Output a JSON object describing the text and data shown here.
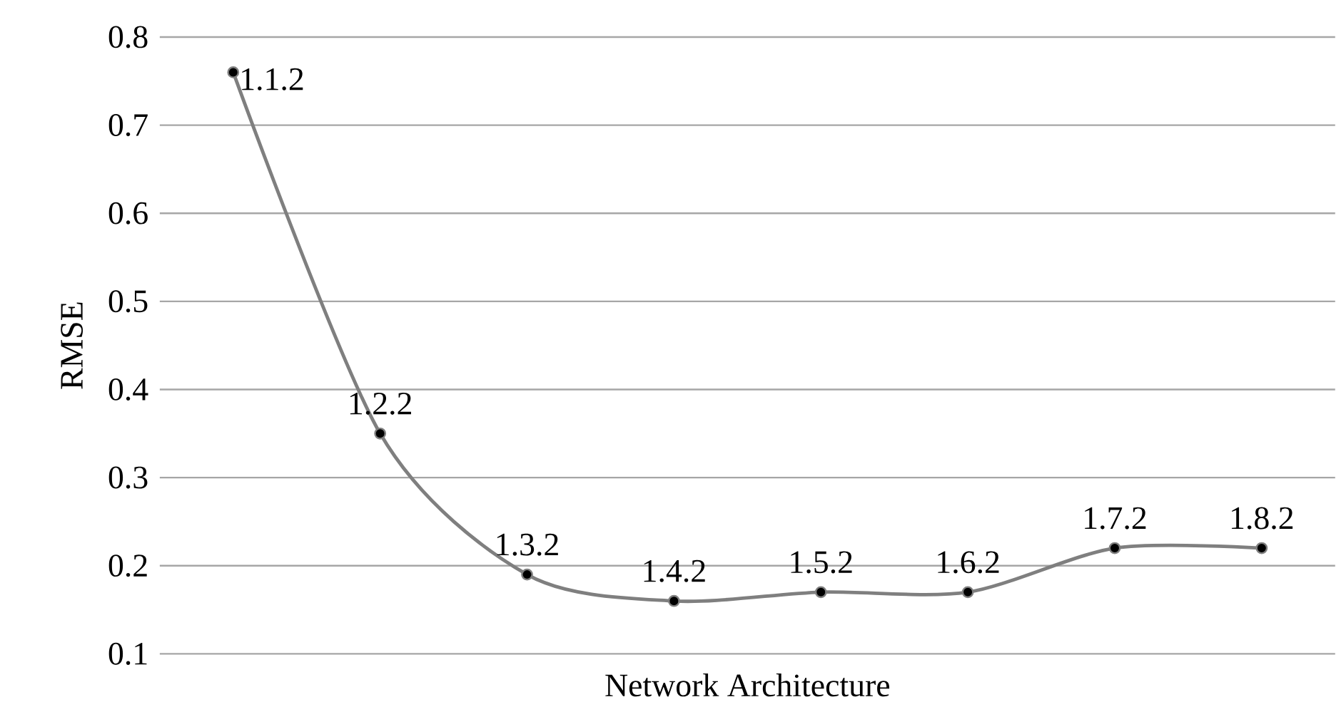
{
  "chart_data": {
    "type": "line",
    "xlabel": "Network Architecture",
    "ylabel": "RMSE",
    "categories": [
      "1.1.2",
      "1.2.2",
      "1.3.2",
      "1.4.2",
      "1.5.2",
      "1.6.2",
      "1.7.2",
      "1.8.2"
    ],
    "series": [
      {
        "color": "#7f7f7f",
        "values": [
          0.76,
          0.35,
          0.19,
          0.16,
          0.17,
          0.17,
          0.22,
          0.22
        ]
      }
    ],
    "ylim": [
      0.1,
      0.8
    ],
    "yticks": [
      0.1,
      0.2,
      0.3,
      0.4,
      0.5,
      0.6,
      0.7,
      0.8
    ],
    "grid": "y",
    "marker": "circle",
    "line_style": "solid",
    "tick_labels": "y"
  }
}
